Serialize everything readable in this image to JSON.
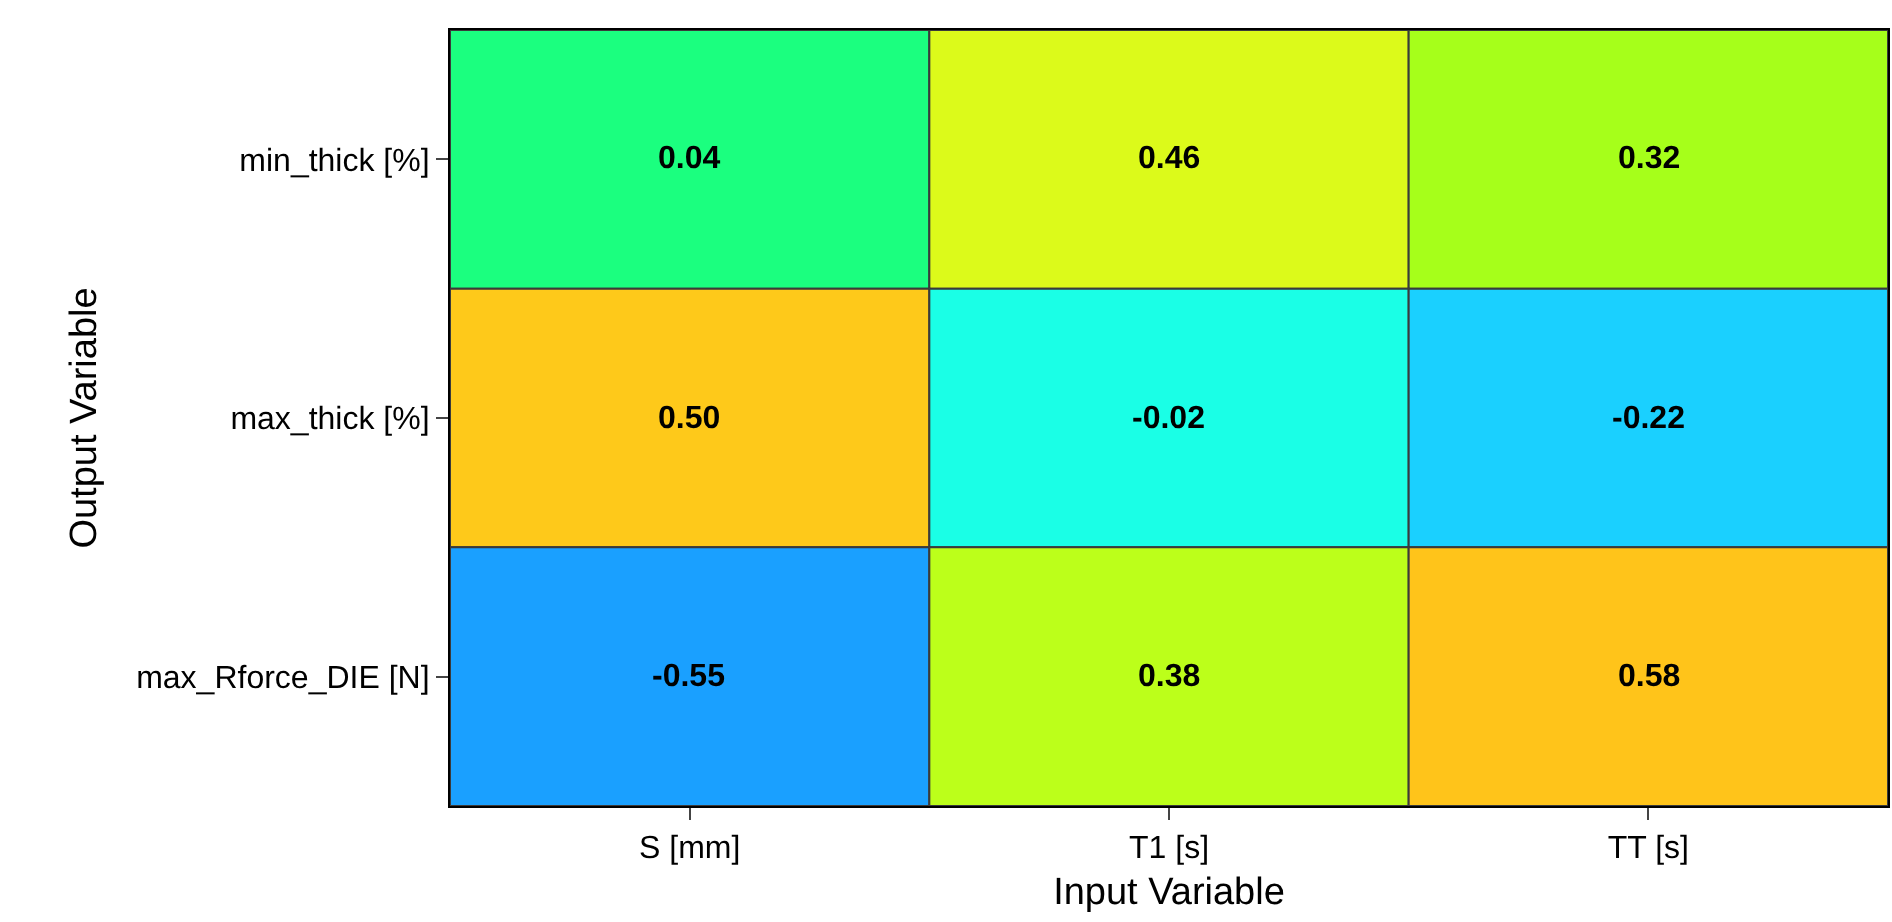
{
  "chart_data": {
    "type": "heatmap",
    "xlabel": "Input Variable",
    "ylabel": "Output Variable",
    "categories": [
      "S [mm]",
      "T1 [s]",
      "TT [s]"
    ],
    "y_categories": [
      "min_thick [%]",
      "max_thick [%]",
      "max_Rforce_DIE [N]"
    ],
    "cells": [
      [
        0.04,
        0.46,
        0.32
      ],
      [
        0.5,
        -0.02,
        -0.22
      ],
      [
        -0.55,
        0.38,
        0.58
      ]
    ],
    "cell_labels": [
      [
        "0.04",
        "0.46",
        "0.32"
      ],
      [
        "0.50",
        "-0.02",
        "-0.22"
      ],
      [
        "-0.55",
        "0.38",
        "0.58"
      ]
    ]
  }
}
